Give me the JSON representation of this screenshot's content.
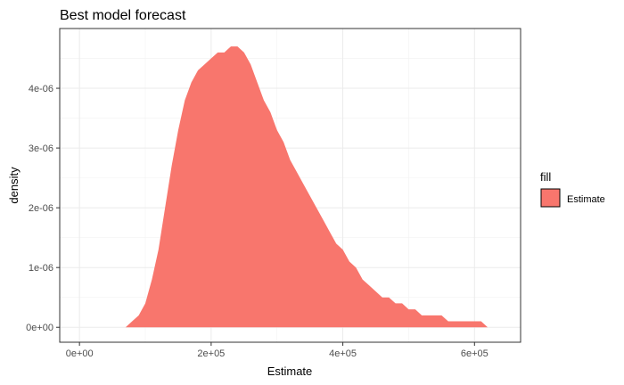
{
  "chart_data": {
    "type": "area",
    "title": "Best model forecast",
    "xlabel": "Estimate",
    "ylabel": "density",
    "xlim": [
      -30000,
      670000
    ],
    "ylim": [
      -2.5e-07,
      5e-06
    ],
    "grid": true,
    "x_ticks": [
      {
        "value": 0,
        "label": "0e+00"
      },
      {
        "value": 200000,
        "label": "2e+05"
      },
      {
        "value": 400000,
        "label": "4e+05"
      },
      {
        "value": 600000,
        "label": "6e+05"
      }
    ],
    "y_ticks": [
      {
        "value": 0,
        "label": "0e+00"
      },
      {
        "value": 1e-06,
        "label": "1e-06"
      },
      {
        "value": 2e-06,
        "label": "2e-06"
      },
      {
        "value": 3e-06,
        "label": "3e-06"
      },
      {
        "value": 4e-06,
        "label": "4e-06"
      }
    ],
    "legend": {
      "title": "fill",
      "position": "right",
      "entries": [
        {
          "label": "Estimate",
          "color": "#F8766D"
        }
      ]
    },
    "series": [
      {
        "name": "Estimate",
        "color": "#F8766D",
        "x": [
          50000,
          60000,
          70000,
          80000,
          90000,
          100000,
          110000,
          120000,
          130000,
          140000,
          150000,
          160000,
          170000,
          180000,
          190000,
          200000,
          210000,
          220000,
          230000,
          240000,
          250000,
          260000,
          270000,
          280000,
          290000,
          300000,
          310000,
          320000,
          330000,
          340000,
          350000,
          360000,
          370000,
          380000,
          390000,
          400000,
          410000,
          420000,
          430000,
          440000,
          450000,
          460000,
          470000,
          480000,
          490000,
          500000,
          510000,
          520000,
          530000,
          540000,
          550000,
          560000,
          570000,
          580000,
          590000,
          600000,
          610000,
          620000,
          630000
        ],
        "y": [
          0.0,
          0.0,
          0.0,
          1e-07,
          2e-07,
          4e-07,
          8e-07,
          1.3e-06,
          2e-06,
          2.7e-06,
          3.3e-06,
          3.8e-06,
          4.1e-06,
          4.3e-06,
          4.4e-06,
          4.5e-06,
          4.6e-06,
          4.6e-06,
          4.7e-06,
          4.7e-06,
          4.6e-06,
          4.4e-06,
          4.1e-06,
          3.8e-06,
          3.6e-06,
          3.3e-06,
          3.1e-06,
          2.8e-06,
          2.6e-06,
          2.4e-06,
          2.2e-06,
          2e-06,
          1.8e-06,
          1.6e-06,
          1.4e-06,
          1.3e-06,
          1.1e-06,
          1e-06,
          8e-07,
          7e-07,
          6e-07,
          5e-07,
          5e-07,
          4e-07,
          4e-07,
          3e-07,
          3e-07,
          2e-07,
          2e-07,
          2e-07,
          2e-07,
          1e-07,
          1e-07,
          1e-07,
          1e-07,
          1e-07,
          1e-07,
          0.0,
          0.0
        ]
      }
    ]
  }
}
